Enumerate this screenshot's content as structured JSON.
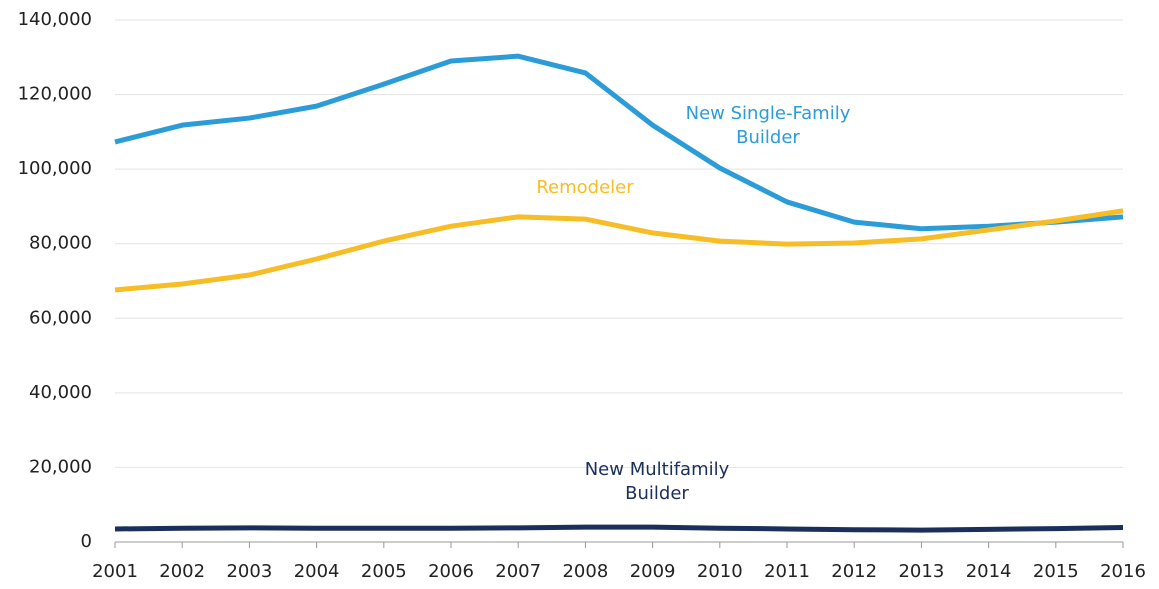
{
  "chart_data": {
    "type": "line",
    "x": [
      "2001",
      "2002",
      "2003",
      "2004",
      "2005",
      "2006",
      "2007",
      "2008",
      "2009",
      "2010",
      "2011",
      "2012",
      "2013",
      "2014",
      "2015",
      "2016"
    ],
    "series": [
      {
        "name": "New Single-Family Builder",
        "color": "#2b9cd8",
        "values": [
          107300,
          111800,
          113700,
          116900,
          122800,
          129000,
          130300,
          125800,
          111800,
          100300,
          91200,
          85800,
          84000,
          84700,
          85800,
          87200
        ]
      },
      {
        "name": "Remodeler",
        "color": "#f7bd26",
        "values": [
          67600,
          69200,
          71600,
          75900,
          80700,
          84700,
          87200,
          86600,
          82900,
          80700,
          79900,
          80200,
          81300,
          83700,
          86100,
          88800
        ]
      },
      {
        "name": "New Multifamily Builder",
        "color": "#1b2f5c",
        "values": [
          3500,
          3700,
          3800,
          3700,
          3700,
          3700,
          3800,
          4000,
          4000,
          3700,
          3500,
          3300,
          3200,
          3400,
          3600,
          3900
        ]
      }
    ],
    "ylim": [
      0,
      140000
    ],
    "yticks": [
      0,
      {
        "value": 20000,
        "label": "20,000"
      },
      {
        "value": 40000,
        "label": "40,000"
      },
      {
        "value": 60000,
        "label": "60,000"
      },
      {
        "value": 80000,
        "label": "80,000"
      },
      {
        "value": 100000,
        "label": "100,000"
      },
      {
        "value": 120000,
        "label": "120,000"
      },
      {
        "value": 140000,
        "label": "140,000"
      }
    ],
    "grid": true
  }
}
